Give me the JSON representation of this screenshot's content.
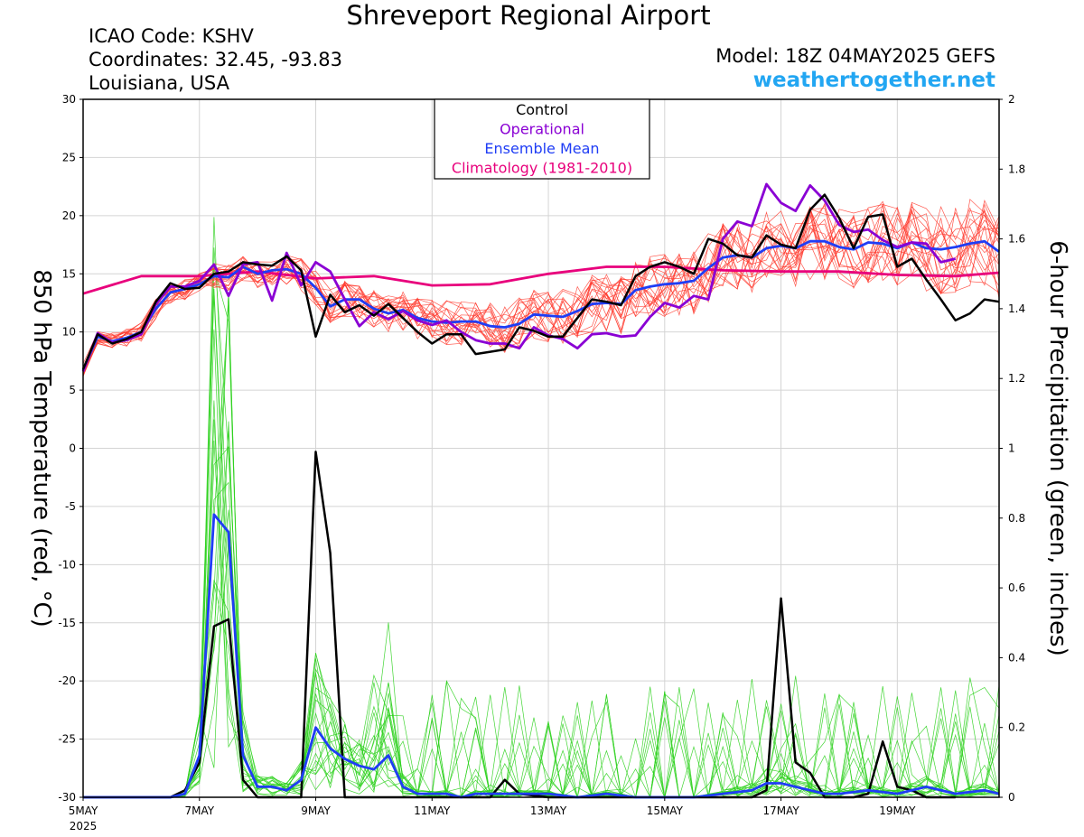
{
  "header": {
    "title": "Shreveport Regional Airport",
    "icao": "ICAO Code: KSHV",
    "coords": "Coordinates: 32.45, -93.83",
    "location": "Louisiana, USA",
    "model": "Model: 18Z 04MAY2025 GEFS",
    "site": "weathertogether.net"
  },
  "chart_data": {
    "type": "line",
    "x_tick_labels": [
      "5MAY",
      "7MAY",
      "9MAY",
      "11MAY",
      "13MAY",
      "15MAY",
      "17MAY",
      "19MAY"
    ],
    "x_year_label": "2025",
    "x_range_days": [
      0,
      15.75
    ],
    "y_left": {
      "label": "850 hPa Temperature (red, °C)",
      "range": [
        -30,
        30
      ],
      "ticks": [
        30,
        25,
        20,
        15,
        10,
        5,
        0,
        -5,
        -10,
        -15,
        -20,
        -25,
        -30
      ]
    },
    "y_right": {
      "label": "6-hour Precipitation (green, inches)",
      "range": [
        0,
        2
      ],
      "ticks": [
        "2",
        "1.8",
        "1.6",
        "1.4",
        "1.2",
        "1",
        "0.8",
        "0.6",
        "0.4",
        "0.2",
        "0"
      ]
    },
    "legend": {
      "placement": "top-center",
      "entries": [
        "Control",
        "Operational",
        "Ensemble Mean",
        "Climatology (1981-2010)"
      ]
    },
    "colors": {
      "control": "#000000",
      "operational": "#8a00d4",
      "ensemble_mean": "#1f3df5",
      "climatology": "#e8007c",
      "members_temp": "#ff3b2f",
      "members_precip": "#2fd21f"
    },
    "temperature": {
      "control": [
        [
          0,
          6.8
        ],
        [
          0.25,
          9.8
        ],
        [
          0.5,
          9.0
        ],
        [
          0.75,
          9.4
        ],
        [
          1,
          10.0
        ],
        [
          1.25,
          12.6
        ],
        [
          1.5,
          14.2
        ],
        [
          1.75,
          13.7
        ],
        [
          2,
          13.8
        ],
        [
          2.25,
          15.0
        ],
        [
          2.5,
          15.2
        ],
        [
          2.75,
          16.0
        ],
        [
          3,
          15.8
        ],
        [
          3.25,
          15.7
        ],
        [
          3.5,
          16.5
        ],
        [
          3.75,
          15.3
        ],
        [
          4,
          9.6
        ],
        [
          4.25,
          13.2
        ],
        [
          4.5,
          11.7
        ],
        [
          4.75,
          12.3
        ],
        [
          5,
          11.4
        ],
        [
          5.25,
          12.4
        ],
        [
          5.5,
          11.2
        ],
        [
          5.75,
          10.0
        ],
        [
          6,
          9.0
        ],
        [
          6.25,
          9.8
        ],
        [
          6.5,
          9.8
        ],
        [
          6.75,
          8.1
        ],
        [
          7,
          8.3
        ],
        [
          7.25,
          8.5
        ],
        [
          7.5,
          10.4
        ],
        [
          7.75,
          10.1
        ],
        [
          8,
          9.6
        ],
        [
          8.25,
          9.6
        ],
        [
          8.5,
          11.2
        ],
        [
          8.75,
          12.8
        ],
        [
          9,
          12.6
        ],
        [
          9.25,
          12.3
        ],
        [
          9.5,
          14.8
        ],
        [
          9.75,
          15.6
        ],
        [
          10,
          16.0
        ],
        [
          10.25,
          15.6
        ],
        [
          10.5,
          15.0
        ],
        [
          10.75,
          18.0
        ],
        [
          11,
          17.6
        ],
        [
          11.25,
          16.6
        ],
        [
          11.5,
          16.4
        ],
        [
          11.75,
          18.3
        ],
        [
          12,
          17.5
        ],
        [
          12.25,
          17.2
        ],
        [
          12.5,
          20.5
        ],
        [
          12.75,
          21.8
        ],
        [
          13,
          19.8
        ],
        [
          13.25,
          17.2
        ],
        [
          13.5,
          19.9
        ],
        [
          13.75,
          20.1
        ],
        [
          14,
          15.6
        ],
        [
          14.25,
          16.3
        ],
        [
          14.5,
          14.5
        ],
        [
          14.75,
          12.8
        ],
        [
          15,
          11.0
        ],
        [
          15.25,
          11.6
        ],
        [
          15.5,
          12.8
        ],
        [
          15.75,
          12.6
        ]
      ],
      "operational": [
        [
          0,
          6.6
        ],
        [
          0.25,
          9.9
        ],
        [
          0.5,
          9.1
        ],
        [
          0.75,
          9.3
        ],
        [
          1,
          9.8
        ],
        [
          1.25,
          12.4
        ],
        [
          1.5,
          13.9
        ],
        [
          1.75,
          13.9
        ],
        [
          2,
          14.4
        ],
        [
          2.25,
          15.8
        ],
        [
          2.5,
          13.1
        ],
        [
          2.75,
          15.8
        ],
        [
          3,
          16.0
        ],
        [
          3.25,
          12.7
        ],
        [
          3.5,
          16.8
        ],
        [
          3.75,
          14.0
        ],
        [
          4,
          16.0
        ],
        [
          4.25,
          15.2
        ],
        [
          4.5,
          12.8
        ],
        [
          4.75,
          10.5
        ],
        [
          5,
          11.7
        ],
        [
          5.25,
          11.1
        ],
        [
          5.5,
          11.8
        ],
        [
          5.75,
          11.0
        ],
        [
          6,
          10.6
        ],
        [
          6.25,
          11.0
        ],
        [
          6.5,
          10.0
        ],
        [
          6.75,
          9.3
        ],
        [
          7,
          9.0
        ],
        [
          7.25,
          9.0
        ],
        [
          7.5,
          8.6
        ],
        [
          7.75,
          10.4
        ],
        [
          8,
          9.7
        ],
        [
          8.25,
          9.4
        ],
        [
          8.5,
          8.6
        ],
        [
          8.75,
          9.8
        ],
        [
          9,
          9.9
        ],
        [
          9.25,
          9.6
        ],
        [
          9.5,
          9.7
        ],
        [
          9.75,
          11.3
        ],
        [
          10,
          12.5
        ],
        [
          10.25,
          12.1
        ],
        [
          10.5,
          13.1
        ],
        [
          10.75,
          12.8
        ],
        [
          11,
          18.0
        ],
        [
          11.25,
          19.5
        ],
        [
          11.5,
          19.1
        ],
        [
          11.75,
          22.7
        ],
        [
          12,
          21.1
        ],
        [
          12.25,
          20.4
        ],
        [
          12.5,
          22.6
        ],
        [
          12.75,
          21.3
        ],
        [
          13,
          19.2
        ],
        [
          13.25,
          18.6
        ],
        [
          13.5,
          18.8
        ],
        [
          13.75,
          17.9
        ],
        [
          14,
          17.3
        ],
        [
          14.25,
          17.7
        ],
        [
          14.5,
          17.6
        ],
        [
          14.75,
          16.0
        ],
        [
          15,
          16.3
        ]
      ],
      "ensemble_mean": [
        [
          0,
          6.7
        ],
        [
          0.25,
          9.6
        ],
        [
          0.5,
          9.2
        ],
        [
          0.75,
          9.5
        ],
        [
          1,
          10.0
        ],
        [
          1.25,
          12.0
        ],
        [
          1.5,
          13.4
        ],
        [
          1.75,
          13.7
        ],
        [
          2,
          14.1
        ],
        [
          2.25,
          14.8
        ],
        [
          2.5,
          14.7
        ],
        [
          2.75,
          15.6
        ],
        [
          3,
          15.0
        ],
        [
          3.25,
          15.3
        ],
        [
          3.5,
          15.4
        ],
        [
          3.75,
          15.0
        ],
        [
          4,
          13.8
        ],
        [
          4.25,
          12.2
        ],
        [
          4.5,
          12.8
        ],
        [
          4.75,
          12.8
        ],
        [
          5,
          12.0
        ],
        [
          5.25,
          11.6
        ],
        [
          5.5,
          11.9
        ],
        [
          5.75,
          11.2
        ],
        [
          6,
          10.9
        ],
        [
          6.25,
          10.8
        ],
        [
          6.5,
          10.9
        ],
        [
          6.75,
          10.9
        ],
        [
          7,
          10.5
        ],
        [
          7.25,
          10.4
        ],
        [
          7.5,
          10.7
        ],
        [
          7.75,
          11.5
        ],
        [
          8,
          11.4
        ],
        [
          8.25,
          11.3
        ],
        [
          8.5,
          11.8
        ],
        [
          8.75,
          12.4
        ],
        [
          9,
          12.5
        ],
        [
          9.25,
          12.4
        ],
        [
          9.5,
          13.6
        ],
        [
          9.75,
          13.9
        ],
        [
          10,
          14.1
        ],
        [
          10.25,
          14.2
        ],
        [
          10.5,
          14.4
        ],
        [
          10.75,
          15.5
        ],
        [
          11,
          16.4
        ],
        [
          11.25,
          16.6
        ],
        [
          11.5,
          16.4
        ],
        [
          11.75,
          17.2
        ],
        [
          12,
          17.4
        ],
        [
          12.25,
          17.2
        ],
        [
          12.5,
          17.8
        ],
        [
          12.75,
          17.8
        ],
        [
          13,
          17.3
        ],
        [
          13.25,
          17.1
        ],
        [
          13.5,
          17.7
        ],
        [
          13.75,
          17.6
        ],
        [
          14,
          17.2
        ],
        [
          14.25,
          17.7
        ],
        [
          14.5,
          17.2
        ],
        [
          14.75,
          17.1
        ],
        [
          15,
          17.3
        ],
        [
          15.25,
          17.6
        ],
        [
          15.5,
          17.8
        ],
        [
          15.75,
          16.9
        ]
      ],
      "climatology": [
        [
          0,
          13.3
        ],
        [
          1,
          14.8
        ],
        [
          2,
          14.8
        ],
        [
          3,
          15.2
        ],
        [
          4,
          14.6
        ],
        [
          5,
          14.8
        ],
        [
          6,
          14.0
        ],
        [
          7,
          14.1
        ],
        [
          8,
          15.0
        ],
        [
          9,
          15.6
        ],
        [
          10,
          15.6
        ],
        [
          11,
          15.3
        ],
        [
          12,
          15.2
        ],
        [
          13,
          15.2
        ],
        [
          14,
          14.9
        ],
        [
          15,
          14.8
        ],
        [
          15.75,
          15.1
        ]
      ]
    },
    "precip_inches": {
      "control": [
        [
          0,
          0
        ],
        [
          1,
          0
        ],
        [
          1.25,
          0
        ],
        [
          1.5,
          0
        ],
        [
          1.75,
          0.02
        ],
        [
          2,
          0.1
        ],
        [
          2.25,
          0.49
        ],
        [
          2.5,
          0.51
        ],
        [
          2.75,
          0.05
        ],
        [
          3,
          0
        ],
        [
          3.25,
          0
        ],
        [
          3.5,
          0
        ],
        [
          3.75,
          0
        ],
        [
          4,
          0.99
        ],
        [
          4.25,
          0.7
        ],
        [
          4.5,
          0
        ],
        [
          4.75,
          0
        ],
        [
          5,
          0
        ],
        [
          5.5,
          0
        ],
        [
          6,
          0
        ],
        [
          6.5,
          0
        ],
        [
          7,
          0
        ],
        [
          7.25,
          0.05
        ],
        [
          7.5,
          0.01
        ],
        [
          8,
          0
        ],
        [
          9,
          0
        ],
        [
          10,
          0
        ],
        [
          11,
          0
        ],
        [
          11.5,
          0
        ],
        [
          11.75,
          0.02
        ],
        [
          12,
          0.57
        ],
        [
          12.25,
          0.1
        ],
        [
          12.5,
          0.07
        ],
        [
          12.75,
          0
        ],
        [
          13,
          0
        ],
        [
          13.25,
          0
        ],
        [
          13.5,
          0.01
        ],
        [
          13.75,
          0.16
        ],
        [
          14,
          0.03
        ],
        [
          14.25,
          0.02
        ],
        [
          14.5,
          0
        ],
        [
          15,
          0
        ]
      ],
      "ensemble_mean": [
        [
          0,
          0
        ],
        [
          1,
          0
        ],
        [
          1.5,
          0
        ],
        [
          1.75,
          0.01
        ],
        [
          2,
          0.12
        ],
        [
          2.25,
          0.81
        ],
        [
          2.5,
          0.76
        ],
        [
          2.75,
          0.12
        ],
        [
          3,
          0.03
        ],
        [
          3.25,
          0.03
        ],
        [
          3.5,
          0.02
        ],
        [
          3.75,
          0.05
        ],
        [
          4,
          0.2
        ],
        [
          4.25,
          0.14
        ],
        [
          4.5,
          0.11
        ],
        [
          4.75,
          0.09
        ],
        [
          5,
          0.08
        ],
        [
          5.25,
          0.12
        ],
        [
          5.5,
          0.03
        ],
        [
          5.75,
          0.01
        ],
        [
          6,
          0.01
        ],
        [
          6.25,
          0.01
        ],
        [
          6.5,
          0
        ],
        [
          6.75,
          0.01
        ],
        [
          7,
          0.01
        ],
        [
          7.25,
          0.01
        ],
        [
          7.5,
          0.01
        ],
        [
          7.75,
          0.01
        ],
        [
          8,
          0.01
        ],
        [
          8.5,
          0
        ],
        [
          9,
          0.01
        ],
        [
          9.5,
          0
        ],
        [
          10,
          0
        ],
        [
          10.5,
          0
        ],
        [
          11,
          0.01
        ],
        [
          11.5,
          0.02
        ],
        [
          11.75,
          0.04
        ],
        [
          12,
          0.04
        ],
        [
          12.25,
          0.03
        ],
        [
          12.5,
          0.02
        ],
        [
          12.75,
          0.01
        ],
        [
          13,
          0.01
        ],
        [
          13.5,
          0.02
        ],
        [
          14,
          0.01
        ],
        [
          14.5,
          0.03
        ],
        [
          15,
          0.01
        ],
        [
          15.5,
          0.02
        ],
        [
          15.75,
          0.01
        ]
      ]
    },
    "annotations": [
      "Ensemble member temperature traces (red)",
      "Ensemble member 6-hour precipitation traces (green)"
    ]
  }
}
